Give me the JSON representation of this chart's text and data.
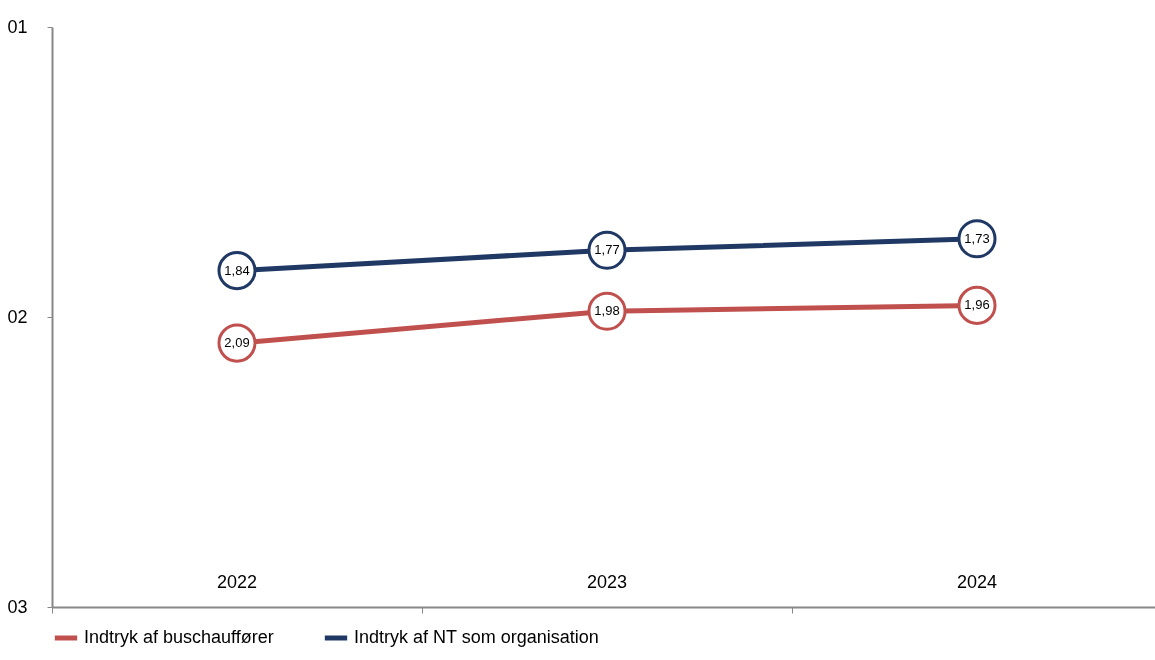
{
  "chart_data": {
    "type": "line",
    "categories": [
      "2022",
      "2023",
      "2024"
    ],
    "series": [
      {
        "name": "Indtryk af buschauffører",
        "color": "#c0504d",
        "values": [
          2.09,
          1.98,
          1.96
        ],
        "value_labels": [
          "2,09",
          "1,98",
          "1,96"
        ]
      },
      {
        "name": "Indtryk af NT som organisation",
        "color": "#1f3864",
        "values": [
          1.84,
          1.77,
          1.73
        ],
        "value_labels": [
          "1,84",
          "1,77",
          "1,73"
        ]
      }
    ],
    "ylim": [
      3,
      1
    ],
    "yticks": [
      {
        "value": 1,
        "label": "01"
      },
      {
        "value": 2,
        "label": "02"
      },
      {
        "value": 3,
        "label": "03"
      }
    ],
    "grid": false,
    "legend": "bottom",
    "marker": "circle",
    "line_style": "solid"
  }
}
